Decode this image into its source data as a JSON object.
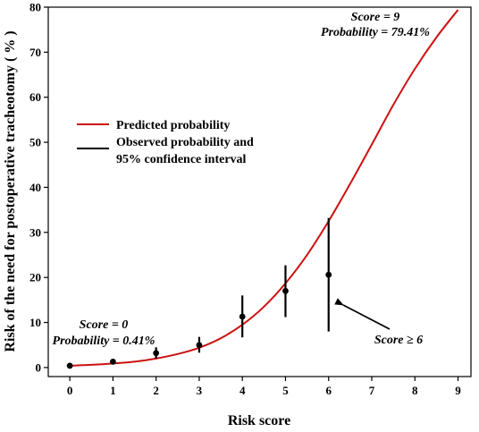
{
  "chart_data": {
    "type": "line",
    "xlabel": "Risk score",
    "ylabel": "Risk of the need for postoperative tracheotomy ( % )",
    "xlim": [
      -0.5,
      9.3
    ],
    "ylim": [
      -2,
      80
    ],
    "x_ticks": [
      "0",
      "1",
      "2",
      "3",
      "4",
      "5",
      "6",
      "7",
      "8",
      "9"
    ],
    "y_ticks": [
      "0",
      "10",
      "20",
      "30",
      "40",
      "50",
      "60",
      "70",
      "80"
    ],
    "grid": false,
    "legend_position": "left",
    "colors": {
      "predicted": "#cc1111",
      "observed": "#000000"
    },
    "series": [
      {
        "name": "Predicted probability",
        "kind": "line",
        "x": [
          0,
          0.5,
          1,
          1.5,
          2,
          2.5,
          3,
          3.5,
          4,
          4.5,
          5,
          5.5,
          6,
          6.5,
          7,
          7.5,
          8,
          8.5,
          9
        ],
        "y": [
          0.41,
          0.6,
          0.9,
          1.3,
          2.0,
          3.0,
          4.4,
          6.5,
          9.5,
          13.5,
          18.7,
          25.0,
          32.5,
          40.8,
          49.5,
          58.3,
          66.3,
          73.3,
          79.41
        ]
      },
      {
        "name": "Observed probability and 95% confidence interval",
        "kind": "errorbar",
        "x": [
          0,
          1,
          2,
          3,
          4,
          5,
          6
        ],
        "y": [
          0.4,
          1.3,
          3.2,
          5.0,
          11.3,
          17.0,
          20.6
        ],
        "lower": [
          0.4,
          1.3,
          2.0,
          3.3,
          6.7,
          11.2,
          8.0
        ],
        "upper": [
          0.4,
          1.3,
          4.5,
          6.8,
          16.0,
          22.7,
          33.2
        ]
      }
    ],
    "legend": {
      "predicted_label": "Predicted probability",
      "observed_label_line1": "Observed probability and",
      "observed_label_line2": "95% confidence interval"
    },
    "annotations": {
      "score9_line1": "Score = 9",
      "score9_line2": "Probability = 79.41%",
      "score0_line1": "Score = 0",
      "score0_line2": "Probability = 0.41%",
      "score6": "Score ≥ 6"
    }
  }
}
